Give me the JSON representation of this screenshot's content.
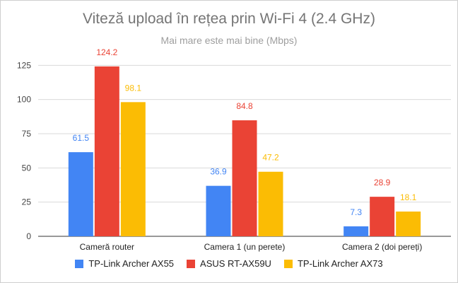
{
  "chart_data": {
    "type": "bar",
    "title": "Viteză upload în rețea prin Wi-Fi 4 (2.4 GHz)",
    "subtitle": "Mai mare este mai bine (Mbps)",
    "categories": [
      "Cameră router",
      "Camera 1 (un perete)",
      "Camera 2 (doi pereți)"
    ],
    "series": [
      {
        "name": "TP-Link Archer AX55",
        "color": "#4285f4",
        "values": [
          61.5,
          36.9,
          7.3
        ],
        "labels": [
          "61.5",
          "36.9",
          "7.3"
        ]
      },
      {
        "name": "ASUS RT-AX59U",
        "color": "#ea4335",
        "values": [
          124.2,
          84.8,
          28.9
        ],
        "labels": [
          "124.2",
          "84.8",
          "28.9"
        ]
      },
      {
        "name": "TP-Link Archer AX73",
        "color": "#fbbc04",
        "values": [
          98.1,
          47.2,
          18.1
        ],
        "labels": [
          "98.1",
          "47.2",
          "18.1"
        ]
      }
    ],
    "ylim": [
      0,
      135
    ],
    "yticks": [
      0,
      25,
      50,
      75,
      100,
      125
    ],
    "ytick_labels": [
      "0",
      "25",
      "50",
      "75",
      "100",
      "125"
    ],
    "grid": true,
    "legend_position": "bottom"
  }
}
